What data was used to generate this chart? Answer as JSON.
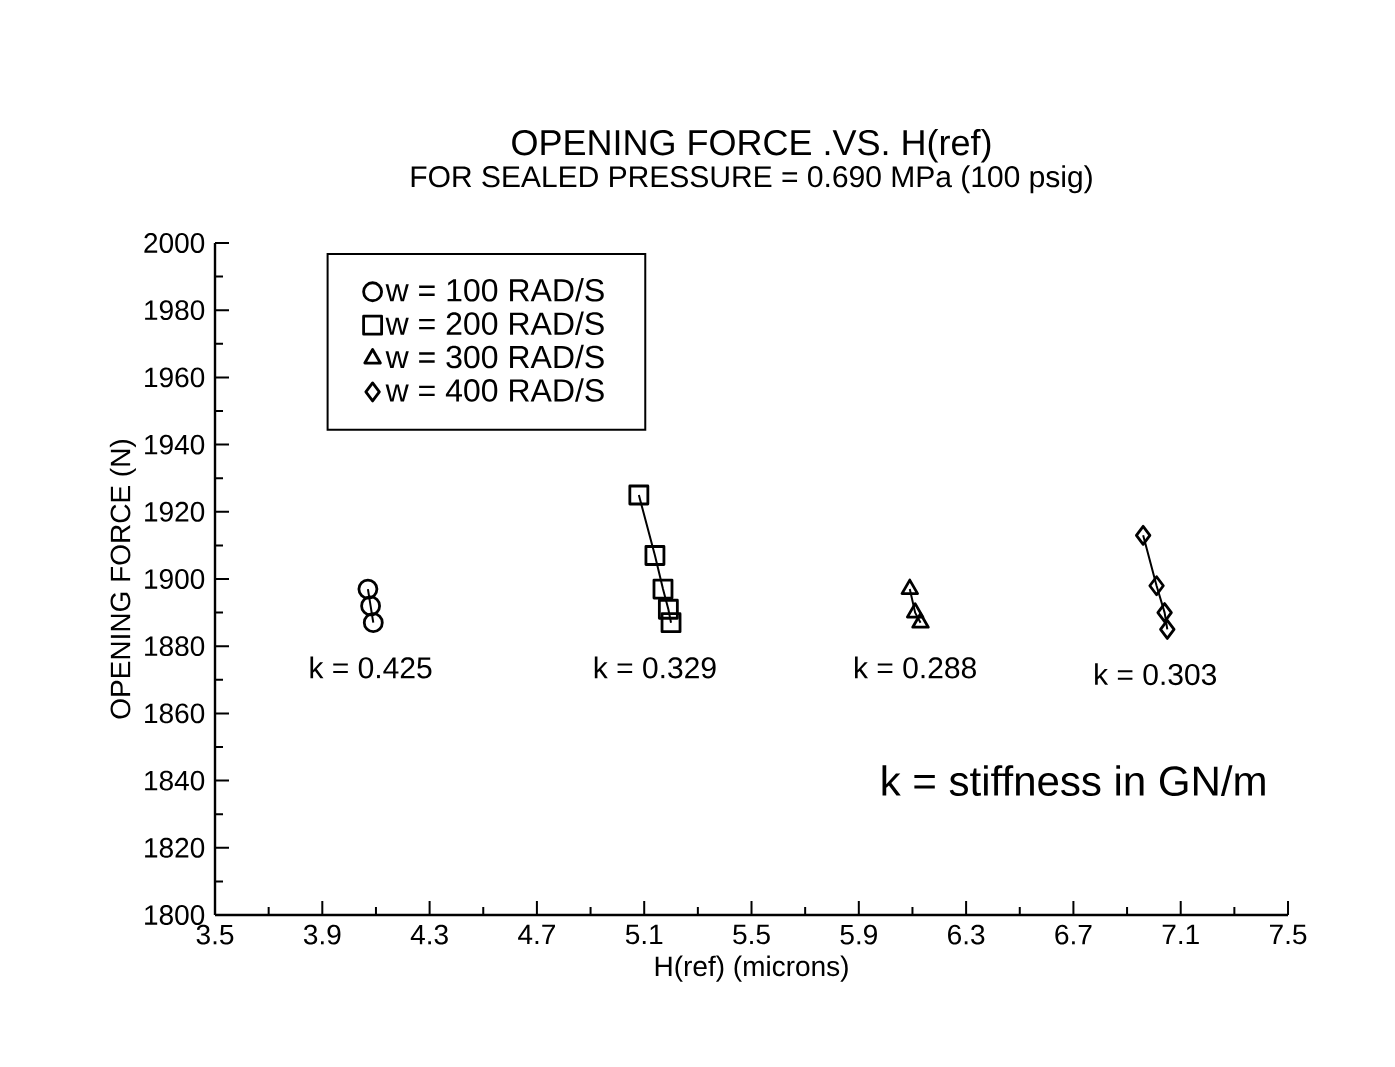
{
  "chart_data": {
    "type": "line",
    "title": "OPENING FORCE .VS. H(ref)",
    "subtitle": "FOR SEALED PRESSURE = 0.690 MPa (100 psig)",
    "xlabel": "H(ref) (microns)",
    "ylabel": "OPENING FORCE (N)",
    "xlim": [
      3.5,
      7.5
    ],
    "xticks": [
      3.5,
      3.9,
      4.3,
      4.7,
      5.1,
      5.5,
      5.9,
      6.3,
      6.7,
      7.1,
      7.5
    ],
    "ylim": [
      1800,
      2000
    ],
    "yticks": [
      1800,
      1820,
      1840,
      1860,
      1880,
      1900,
      1920,
      1940,
      1960,
      1980,
      2000
    ],
    "legend": "top left",
    "grid": false,
    "series": [
      {
        "name": "w = 100 RAD/S",
        "color": "#000000",
        "marker": "circle",
        "x": [
          4.07,
          4.08,
          4.09
        ],
        "values": [
          1897,
          1892,
          1887
        ]
      },
      {
        "name": "w = 200 RAD/S",
        "color": "#000000",
        "marker": "square",
        "x": [
          5.08,
          5.14,
          5.17,
          5.19,
          5.2
        ],
        "values": [
          1925,
          1907,
          1897,
          1891,
          1887
        ]
      },
      {
        "name": "w = 300 RAD/S",
        "color": "#000000",
        "marker": "triangle",
        "x": [
          6.09,
          6.11,
          6.13
        ],
        "values": [
          1897,
          1890,
          1887
        ]
      },
      {
        "name": "w = 400 RAD/S",
        "color": "#000000",
        "marker": "diamond",
        "x": [
          6.96,
          7.01,
          7.04,
          7.05
        ],
        "values": [
          1913,
          1898,
          1890,
          1885
        ]
      }
    ],
    "annotations": [
      "k = 0.425",
      "k = 0.329",
      "k = 0.288",
      "k = 0.303",
      "k = stiffness in GN/m"
    ]
  }
}
